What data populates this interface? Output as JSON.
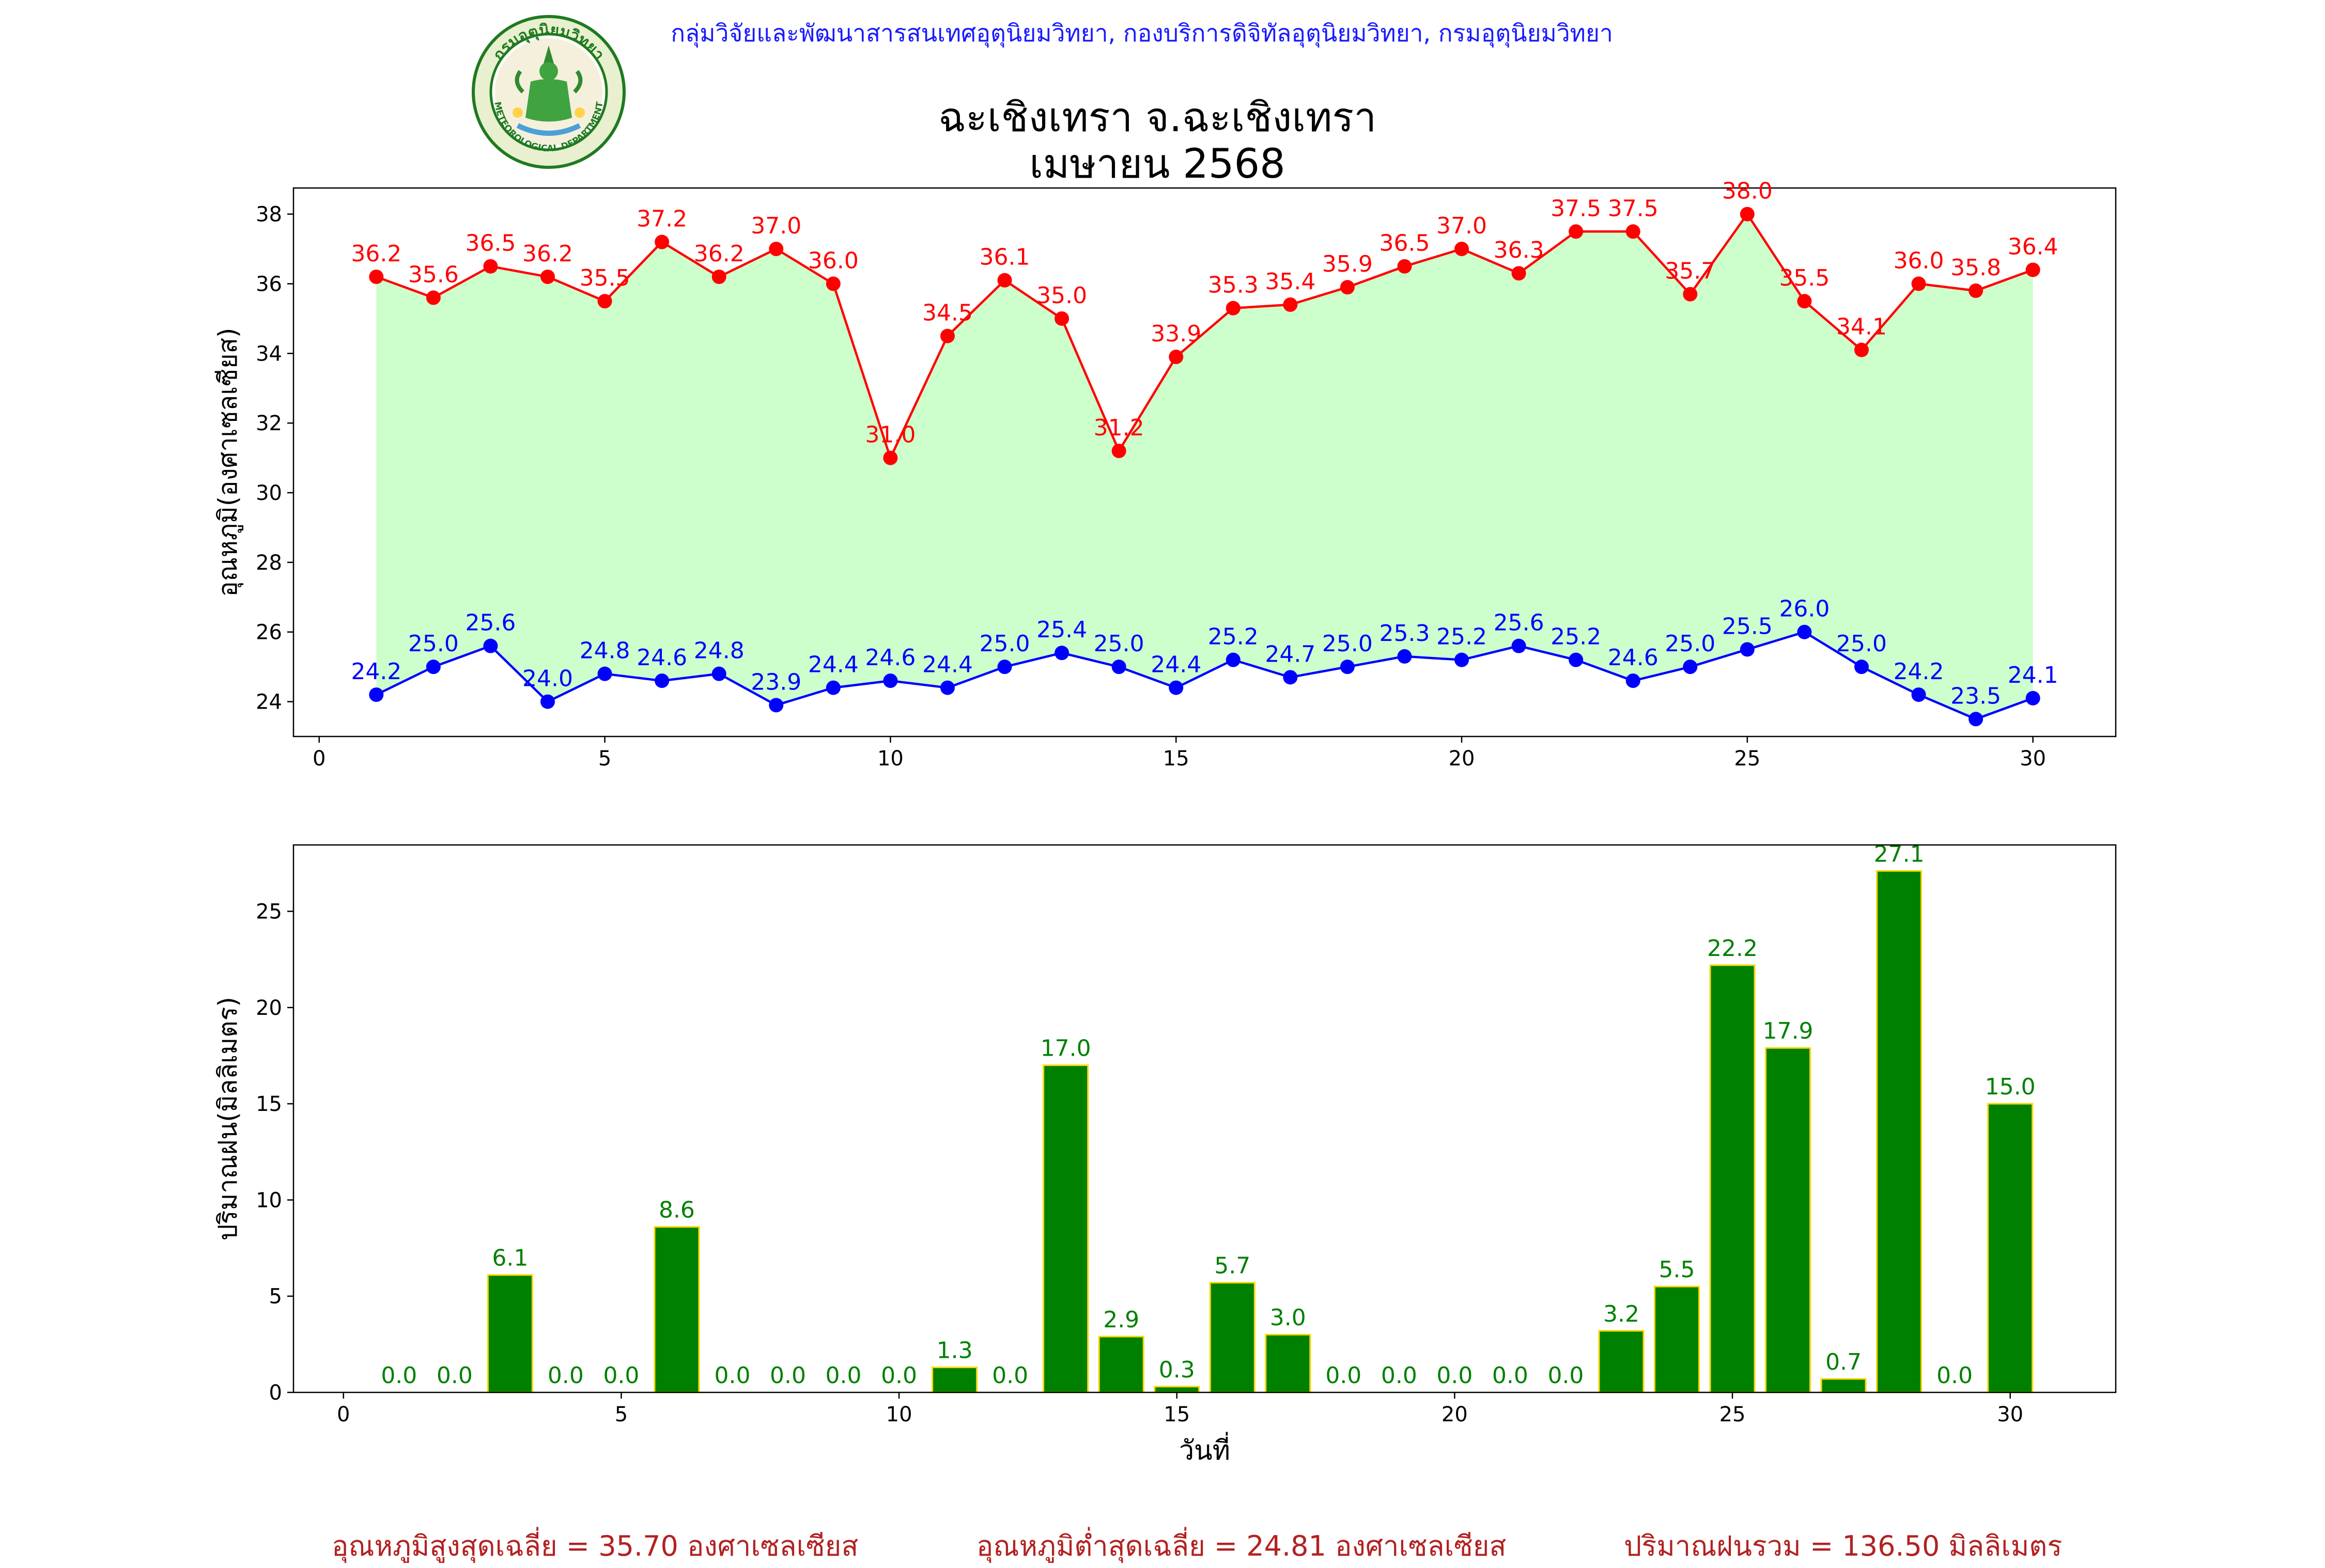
{
  "header": {
    "agency_line": "กลุ่มวิจัยและพัฒนาสารสนเทศอุตุนิยมวิทยา, กองบริการดิจิทัลอุตุนิยมวิทยา, กรมอุตุนิยมวิทยา",
    "title_line1": "ฉะเชิงเทรา จ.ฉะเชิงเทรา",
    "title_line2": "เมษายน 2568",
    "logo_ring_text": "กรมอุตุนิยมวิทยา",
    "logo_bottom_text": "METEOROLOGICAL DEPARTMENT"
  },
  "colors": {
    "max_line": "#ff0000",
    "min_line": "#0000ff",
    "fill": "#ccffcc",
    "bar_fill": "#008000",
    "bar_edge": "#ffd700",
    "bar_label": "#008000",
    "stats": "#b22222"
  },
  "chart_data": [
    {
      "type": "line",
      "x": [
        1,
        2,
        3,
        4,
        5,
        6,
        7,
        8,
        9,
        10,
        11,
        12,
        13,
        14,
        15,
        16,
        17,
        18,
        19,
        20,
        21,
        22,
        23,
        24,
        25,
        26,
        27,
        28,
        29,
        30
      ],
      "series": [
        {
          "values": [
            36.2,
            35.6,
            36.5,
            36.2,
            35.5,
            37.2,
            36.2,
            37.0,
            36.0,
            31.0,
            34.5,
            36.1,
            35.0,
            31.2,
            33.9,
            35.3,
            35.4,
            35.9,
            36.5,
            37.0,
            36.3,
            37.5,
            37.5,
            35.7,
            38.0,
            35.5,
            34.1,
            36.0,
            35.8,
            36.4
          ]
        },
        {
          "values": [
            24.2,
            25.0,
            25.6,
            24.0,
            24.8,
            24.6,
            24.8,
            23.9,
            24.4,
            24.6,
            24.4,
            25.0,
            25.4,
            25.0,
            24.4,
            25.2,
            24.7,
            25.0,
            25.3,
            25.2,
            25.6,
            25.2,
            24.6,
            25.0,
            25.5,
            26.0,
            25.0,
            24.2,
            23.5,
            24.1
          ]
        }
      ],
      "ylabel": "อุณหภูมิ(องศาเซลเซียส)",
      "xticks": [
        0,
        5,
        10,
        15,
        20,
        25,
        30
      ],
      "yticks": [
        24,
        26,
        28,
        30,
        32,
        34,
        36,
        38
      ],
      "xlim": [
        -0.45,
        31.45
      ],
      "ylim": [
        23.0,
        38.75
      ],
      "fill_between": true
    },
    {
      "type": "bar",
      "x": [
        1,
        2,
        3,
        4,
        5,
        6,
        7,
        8,
        9,
        10,
        11,
        12,
        13,
        14,
        15,
        16,
        17,
        18,
        19,
        20,
        21,
        22,
        23,
        24,
        25,
        26,
        27,
        28,
        29,
        30
      ],
      "values": [
        0.0,
        0.0,
        6.1,
        0.0,
        0.0,
        8.6,
        0.0,
        0.0,
        0.0,
        0.0,
        1.3,
        0.0,
        17.0,
        2.9,
        0.3,
        5.7,
        3.0,
        0.0,
        0.0,
        0.0,
        0.0,
        0.0,
        3.2,
        5.5,
        22.2,
        17.9,
        0.7,
        27.1,
        0.0,
        15.0
      ],
      "xlabel": "วันที่",
      "ylabel": "ปริมาณฝน(มิลลิเมตร)",
      "xticks": [
        0,
        5,
        10,
        15,
        20,
        25,
        30
      ],
      "yticks": [
        0,
        5,
        10,
        15,
        20,
        25
      ],
      "xlim": [
        -0.9,
        31.9
      ],
      "ylim": [
        0,
        28.45
      ]
    }
  ],
  "stats": {
    "avg_max": "อุณหภูมิสูงสุดเฉลี่ย = 35.70 องศาเซลเซียส",
    "avg_min": "อุณหภูมิต่ำสุดเฉลี่ย = 24.81 องศาเซลเซียส",
    "total_rain": "ปริมาณฝนรวม = 136.50 มิลลิเมตร"
  }
}
